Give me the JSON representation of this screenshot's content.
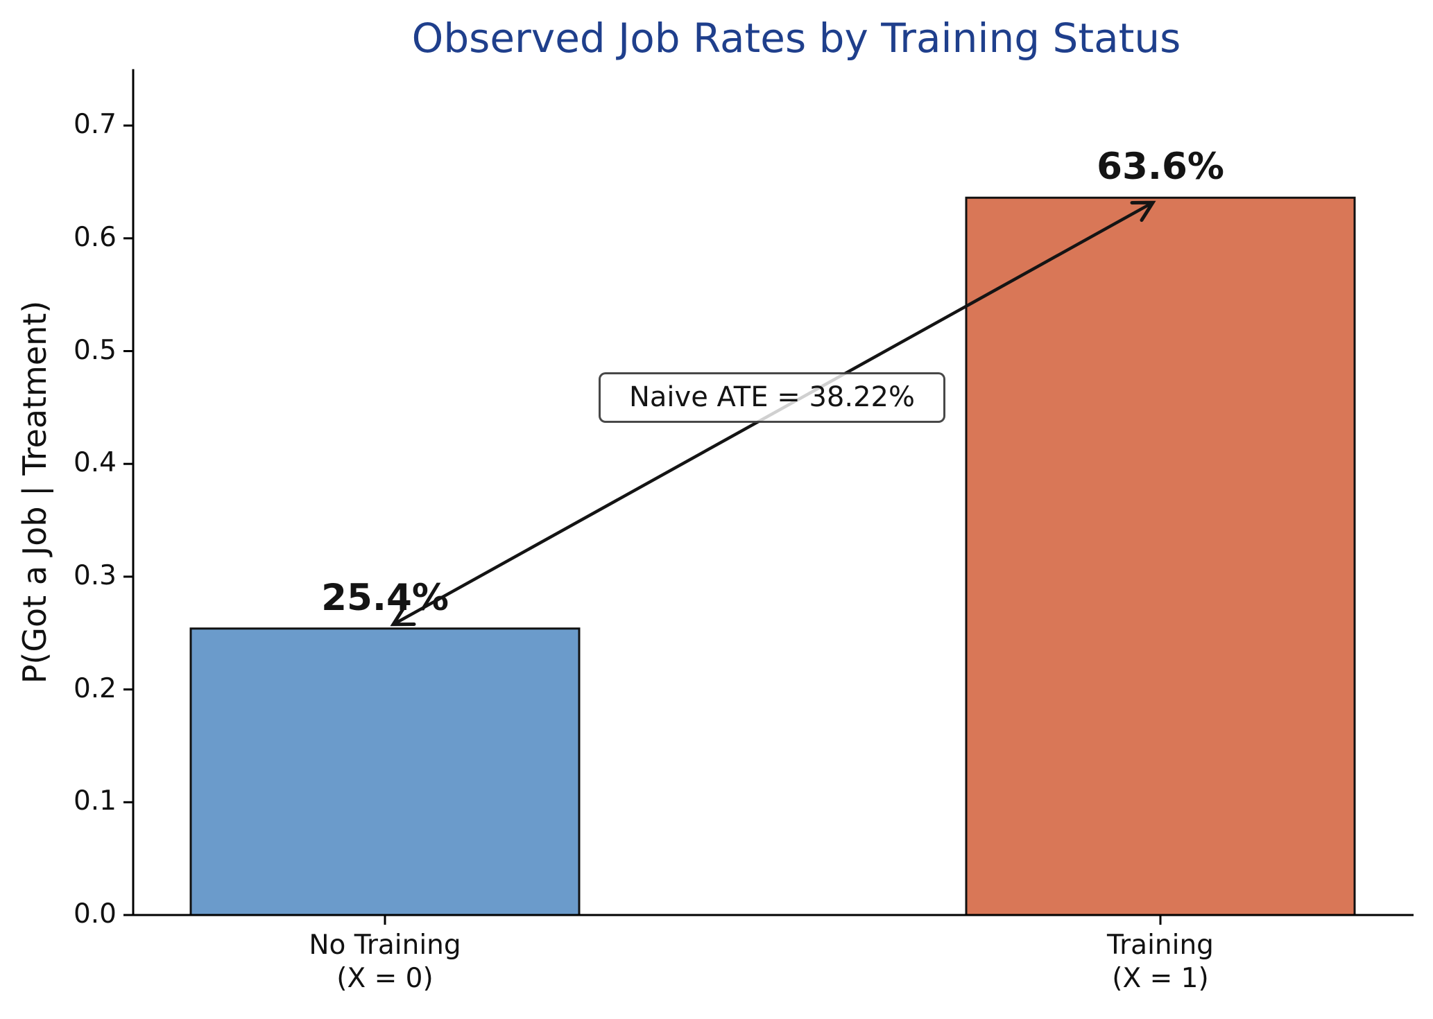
{
  "chart_data": {
    "type": "bar",
    "title": "Observed Job Rates by Training Status",
    "xlabel": "",
    "ylabel": "P(Got a Job | Treatment)",
    "categories": [
      "No Training\n(X = 0)",
      "Training\n(X = 1)"
    ],
    "values": [
      0.254,
      0.636
    ],
    "bar_labels": [
      "25.4%",
      "63.6%"
    ],
    "bar_colors": [
      "#6b9bcb",
      "#d97757"
    ],
    "edge_color": "#111111",
    "ylim": [
      0,
      0.75
    ],
    "yticks": [
      "0.0",
      "0.1",
      "0.2",
      "0.3",
      "0.4",
      "0.5",
      "0.6",
      "0.7"
    ],
    "ytick_values": [
      0.0,
      0.1,
      0.2,
      0.3,
      0.4,
      0.5,
      0.6,
      0.7
    ],
    "grid": false,
    "legend": null,
    "annotations": [
      {
        "type": "double-arrow",
        "from_category": 0,
        "from_value": 0.254,
        "to_category": 1,
        "to_value": 0.636,
        "label": "Naive ATE = 38.22%"
      }
    ]
  },
  "colors": {
    "title": "#1f3f8c",
    "text": "#111111",
    "arrow": "#141414"
  }
}
